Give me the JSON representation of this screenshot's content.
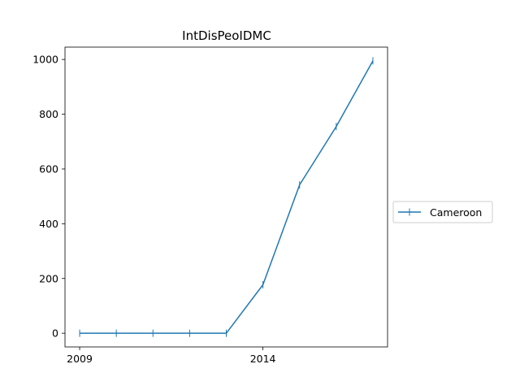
{
  "chart_data": {
    "type": "line",
    "title": "IntDisPeoIDMC",
    "xlabel": "",
    "ylabel": "",
    "x": [
      2009,
      2010,
      2011,
      2012,
      2013,
      2014,
      2015,
      2016,
      2017
    ],
    "xlim": [
      2008.6,
      2017.4
    ],
    "ylim": [
      -50,
      1045
    ],
    "x_ticks": [
      2009,
      2014
    ],
    "y_ticks": [
      0,
      200,
      400,
      600,
      800,
      1000
    ],
    "grid": false,
    "legend_position": "right",
    "marker": "vertical-line",
    "series": [
      {
        "name": "Cameroon",
        "color": "#1f77b4",
        "values": [
          0,
          0,
          0,
          0,
          0,
          177,
          542,
          755,
          995
        ]
      }
    ]
  }
}
